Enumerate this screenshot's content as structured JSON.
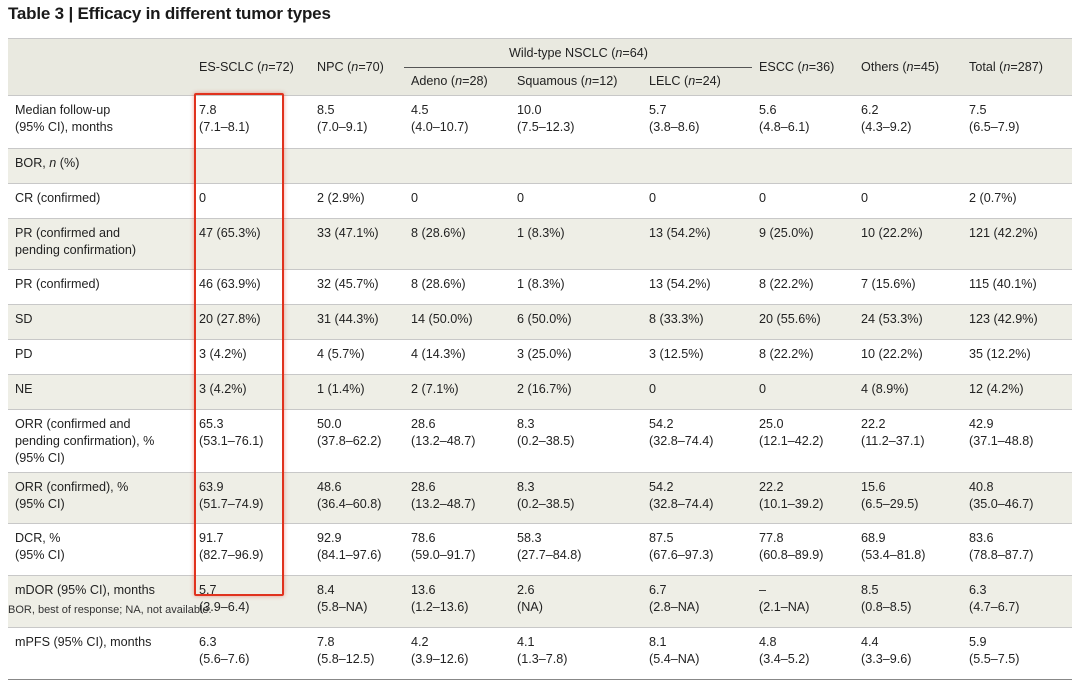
{
  "title": "Table 3 | Efficacy in different tumor types",
  "header": {
    "es_sclc": {
      "name": "ES-SCLC (",
      "n": "n",
      "count": "=72)"
    },
    "npc": {
      "name": "NPC (",
      "n": "n",
      "count": "=70)"
    },
    "wt_nsclc": {
      "name": "Wild-type NSCLC (",
      "n": "n",
      "count": "=64)"
    },
    "escc": {
      "name": "ESCC (",
      "n": "n",
      "count": "=36)"
    },
    "others": {
      "name": "Others (",
      "n": "n",
      "count": "=45)"
    },
    "total": {
      "name": "Total (",
      "n": "n",
      "count": "=287)"
    },
    "adeno": {
      "name": "Adeno (",
      "n": "n",
      "count": "=28)"
    },
    "squamous": {
      "name": "Squamous (",
      "n": "n",
      "count": "=12)"
    },
    "lelc": {
      "name": "LELC (",
      "n": "n",
      "count": "=24)"
    }
  },
  "bor_label": {
    "prefix": "BOR, ",
    "n": "n",
    "suffix": " (%)"
  },
  "rows": [
    {
      "label": [
        "Median follow-up",
        "(95% CI), months"
      ],
      "cells": [
        [
          "7.8",
          "(7.1–8.1)"
        ],
        [
          "8.5",
          "(7.0–9.1)"
        ],
        [
          "4.5",
          "(4.0–10.7)"
        ],
        [
          "10.0",
          "(7.5–12.3)"
        ],
        [
          "5.7",
          "(3.8–8.6)"
        ],
        [
          "5.6",
          "(4.8–6.1)"
        ],
        [
          "6.2",
          "(4.3–9.2)"
        ],
        [
          "7.5",
          "(6.5–7.9)"
        ]
      ]
    },
    {
      "label": [
        "CR (confirmed)"
      ],
      "cells": [
        [
          "0"
        ],
        [
          "2 (2.9%)"
        ],
        [
          "0"
        ],
        [
          "0"
        ],
        [
          "0"
        ],
        [
          "0"
        ],
        [
          "0"
        ],
        [
          "2 (0.7%)"
        ]
      ]
    },
    {
      "label": [
        "PR (confirmed and",
        "pending confirmation)"
      ],
      "cells": [
        [
          "47 (65.3%)"
        ],
        [
          "33 (47.1%)"
        ],
        [
          "8 (28.6%)"
        ],
        [
          "1 (8.3%)"
        ],
        [
          "13 (54.2%)"
        ],
        [
          "9 (25.0%)"
        ],
        [
          "10 (22.2%)"
        ],
        [
          "121 (42.2%)"
        ]
      ]
    },
    {
      "label": [
        "PR (confirmed)"
      ],
      "cells": [
        [
          "46 (63.9%)"
        ],
        [
          "32 (45.7%)"
        ],
        [
          "8 (28.6%)"
        ],
        [
          "1 (8.3%)"
        ],
        [
          "13 (54.2%)"
        ],
        [
          "8 (22.2%)"
        ],
        [
          "7 (15.6%)"
        ],
        [
          "115 (40.1%)"
        ]
      ]
    },
    {
      "label": [
        "SD"
      ],
      "cells": [
        [
          "20 (27.8%)"
        ],
        [
          "31 (44.3%)"
        ],
        [
          "14 (50.0%)"
        ],
        [
          "6 (50.0%)"
        ],
        [
          "8 (33.3%)"
        ],
        [
          "20 (55.6%)"
        ],
        [
          "24 (53.3%)"
        ],
        [
          "123 (42.9%)"
        ]
      ]
    },
    {
      "label": [
        "PD"
      ],
      "cells": [
        [
          "3 (4.2%)"
        ],
        [
          "4 (5.7%)"
        ],
        [
          "4 (14.3%)"
        ],
        [
          "3 (25.0%)"
        ],
        [
          "3 (12.5%)"
        ],
        [
          "8 (22.2%)"
        ],
        [
          "10 (22.2%)"
        ],
        [
          "35 (12.2%)"
        ]
      ]
    },
    {
      "label": [
        "NE"
      ],
      "cells": [
        [
          "3 (4.2%)"
        ],
        [
          "1 (1.4%)"
        ],
        [
          "2 (7.1%)"
        ],
        [
          "2 (16.7%)"
        ],
        [
          "0"
        ],
        [
          "0"
        ],
        [
          "4 (8.9%)"
        ],
        [
          "12 (4.2%)"
        ]
      ]
    },
    {
      "label": [
        "ORR (confirmed and",
        "pending confirmation), %",
        "(95% CI)"
      ],
      "cells": [
        [
          "65.3",
          "(53.1–76.1)"
        ],
        [
          "50.0",
          "(37.8–62.2)"
        ],
        [
          "28.6",
          "(13.2–48.7)"
        ],
        [
          "8.3",
          "(0.2–38.5)"
        ],
        [
          "54.2",
          "(32.8–74.4)"
        ],
        [
          "25.0",
          "(12.1–42.2)"
        ],
        [
          "22.2",
          "(11.2–37.1)"
        ],
        [
          "42.9",
          "(37.1–48.8)"
        ]
      ]
    },
    {
      "label": [
        "ORR (confirmed), %",
        "(95% CI)"
      ],
      "cells": [
        [
          "63.9",
          "(51.7–74.9)"
        ],
        [
          "48.6",
          "(36.4–60.8)"
        ],
        [
          "28.6",
          "(13.2–48.7)"
        ],
        [
          "8.3",
          "(0.2–38.5)"
        ],
        [
          "54.2",
          "(32.8–74.4)"
        ],
        [
          "22.2",
          "(10.1–39.2)"
        ],
        [
          "15.6",
          "(6.5–29.5)"
        ],
        [
          "40.8",
          "(35.0–46.7)"
        ]
      ]
    },
    {
      "label": [
        "DCR, %",
        "(95% CI)"
      ],
      "cells": [
        [
          "91.7",
          "(82.7–96.9)"
        ],
        [
          "92.9",
          "(84.1–97.6)"
        ],
        [
          "78.6",
          "(59.0–91.7)"
        ],
        [
          "58.3",
          "(27.7–84.8)"
        ],
        [
          "87.5",
          "(67.6–97.3)"
        ],
        [
          "77.8",
          "(60.8–89.9)"
        ],
        [
          "68.9",
          "(53.4–81.8)"
        ],
        [
          "83.6",
          "(78.8–87.7)"
        ]
      ]
    },
    {
      "label": [
        "mDOR (95% CI), months"
      ],
      "cells": [
        [
          "5.7",
          "(3.9–6.4)"
        ],
        [
          "8.4",
          "(5.8–NA)"
        ],
        [
          "13.6",
          "(1.2–13.6)"
        ],
        [
          "2.6",
          "(NA)"
        ],
        [
          "6.7",
          "(2.8–NA)"
        ],
        [
          "–",
          "(2.1–NA)"
        ],
        [
          "8.5",
          "(0.8–8.5)"
        ],
        [
          "6.3",
          "(4.7–6.7)"
        ]
      ]
    },
    {
      "label": [
        "mPFS (95% CI), months"
      ],
      "cells": [
        [
          "6.3",
          "(5.6–7.6)"
        ],
        [
          "7.8",
          "(5.8–12.5)"
        ],
        [
          "4.2",
          "(3.9–12.6)"
        ],
        [
          "4.1",
          "(1.3–7.8)"
        ],
        [
          "8.1",
          "(5.4–NA)"
        ],
        [
          "4.8",
          "(3.4–5.2)"
        ],
        [
          "4.4",
          "(3.3–9.6)"
        ],
        [
          "5.9",
          "(5.5–7.5)"
        ]
      ]
    }
  ],
  "footnote": "BOR, best of response; NA, not available.",
  "colors": {
    "highlight": "#e0321e",
    "header_bg": "#e9e9e0",
    "shade_bg": "#eeeee6"
  }
}
